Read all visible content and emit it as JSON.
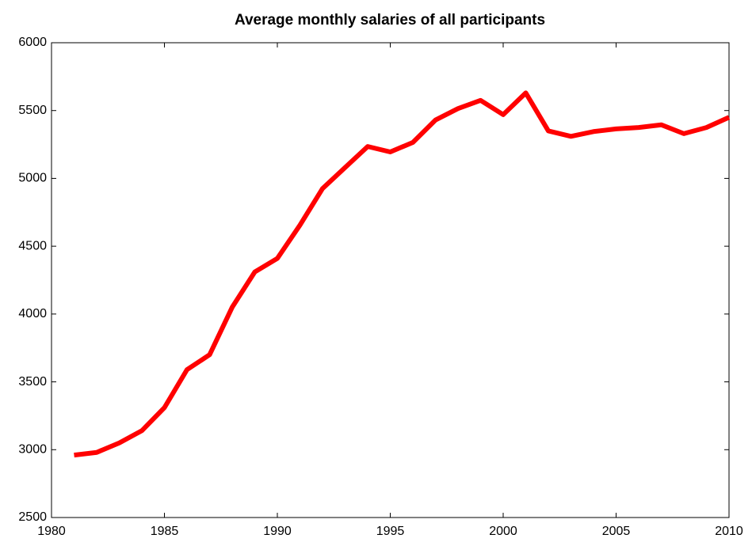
{
  "chart_data": {
    "type": "line",
    "title": "Average monthly salaries of all participants",
    "x": [
      1981,
      1982,
      1983,
      1984,
      1985,
      1986,
      1987,
      1988,
      1989,
      1990,
      1991,
      1992,
      1993,
      1994,
      1995,
      1996,
      1997,
      1998,
      1999,
      2000,
      2001,
      2002,
      2003,
      2004,
      2005,
      2006,
      2007,
      2008,
      2009,
      2010
    ],
    "series": [
      {
        "name": "Average monthly salary",
        "color": "#ff0000",
        "values": [
          2960,
          2980,
          3050,
          3140,
          3310,
          3590,
          3700,
          4050,
          4310,
          4410,
          4655,
          4925,
          5080,
          5235,
          5195,
          5265,
          5430,
          5515,
          5575,
          5470,
          5630,
          5350,
          5310,
          5345,
          5365,
          5375,
          5395,
          5330,
          5375,
          5450
        ]
      }
    ],
    "xlim": [
      1980,
      2010
    ],
    "xticks": [
      1980,
      1985,
      1990,
      1995,
      2000,
      2005,
      2010
    ],
    "ylim": [
      2500,
      6000
    ],
    "yticks": [
      2500,
      3000,
      3500,
      4000,
      4500,
      5000,
      5500,
      6000
    ],
    "grid": false
  }
}
